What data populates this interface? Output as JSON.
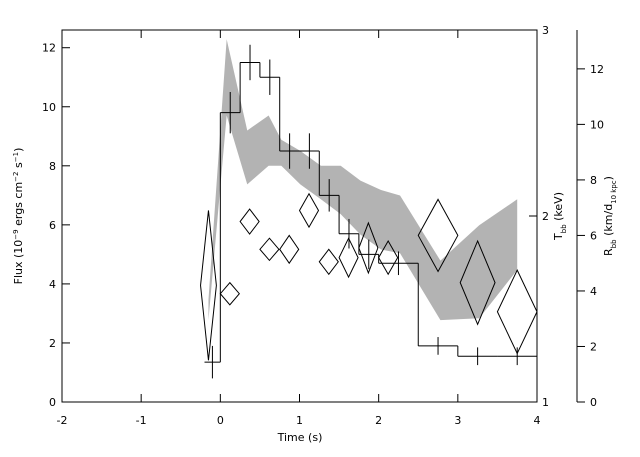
{
  "chart_data": [
    {
      "type": "histogram",
      "xlabel": "Time (s)",
      "ylabel": [
        "Flux (10",
        "−9",
        " ergs cm",
        "−2",
        " s",
        "−1",
        ")"
      ],
      "ylabel_shift": "super",
      "xlim": [
        -2,
        4
      ],
      "xticks": [
        -2,
        -1,
        0,
        1,
        2,
        3,
        4
      ],
      "ylim": [
        0,
        12.6
      ],
      "yticks": [
        0,
        2,
        4,
        6,
        8,
        10,
        12
      ],
      "bins": [
        -0.2,
        0,
        0.25,
        0.5,
        0.75,
        1.0,
        1.25,
        1.5,
        1.75,
        2.0,
        2.5,
        3.0,
        3.5,
        4.0
      ],
      "values": [
        1.35,
        9.8,
        11.5,
        11.0,
        8.5,
        8.5,
        7.0,
        5.7,
        5.0,
        4.7,
        1.9,
        1.55,
        1.55
      ],
      "errors": [
        0.55,
        0.7,
        0.6,
        0.6,
        0.6,
        0.6,
        0.55,
        0.5,
        0.5,
        0.4,
        0.3,
        0.3,
        0.3
      ],
      "color": "#000000"
    },
    {
      "type": "band",
      "ylabel": [
        "T",
        "bb",
        " (keV)"
      ],
      "ylabel_shift": "sub",
      "ylim": [
        1,
        3
      ],
      "yticks": [
        1,
        2,
        3
      ],
      "x": [
        -0.15,
        0.08,
        0.34,
        0.61,
        0.77,
        1.01,
        1.27,
        1.52,
        1.77,
        2.03,
        2.27,
        2.78,
        3.27,
        3.75
      ],
      "upper": [
        1.55,
        2.95,
        2.46,
        2.54,
        2.41,
        2.35,
        2.27,
        2.27,
        2.19,
        2.14,
        2.11,
        1.76,
        1.95,
        2.09
      ],
      "lower": [
        1.44,
        2.54,
        2.17,
        2.27,
        2.27,
        2.17,
        2.09,
        2.01,
        1.9,
        1.82,
        1.8,
        1.44,
        1.45,
        1.71
      ],
      "color": "#b3b3b3"
    },
    {
      "type": "diamond",
      "ylabel": [
        "R",
        "bb",
        " (km/d",
        "10 kpc",
        ")"
      ],
      "ylabel_shift": "sub",
      "ylim": [
        0,
        13.4
      ],
      "yticks": [
        0,
        2,
        4,
        6,
        8,
        10,
        12
      ],
      "x": [
        -0.15,
        0.12,
        0.37,
        0.62,
        0.87,
        1.12,
        1.37,
        1.62,
        1.87,
        2.12,
        2.75,
        3.25,
        3.75
      ],
      "xerr": [
        0.1,
        0.12,
        0.12,
        0.12,
        0.12,
        0.12,
        0.12,
        0.12,
        0.12,
        0.12,
        0.25,
        0.22,
        0.25
      ],
      "values": [
        4.2,
        3.9,
        6.5,
        5.5,
        5.5,
        6.9,
        5.05,
        5.2,
        5.55,
        5.2,
        6.0,
        4.3,
        3.25
      ],
      "errors": [
        2.7,
        0.4,
        0.45,
        0.4,
        0.5,
        0.6,
        0.45,
        0.7,
        0.9,
        0.6,
        1.3,
        1.5,
        1.5
      ],
      "color": "#000000"
    }
  ]
}
